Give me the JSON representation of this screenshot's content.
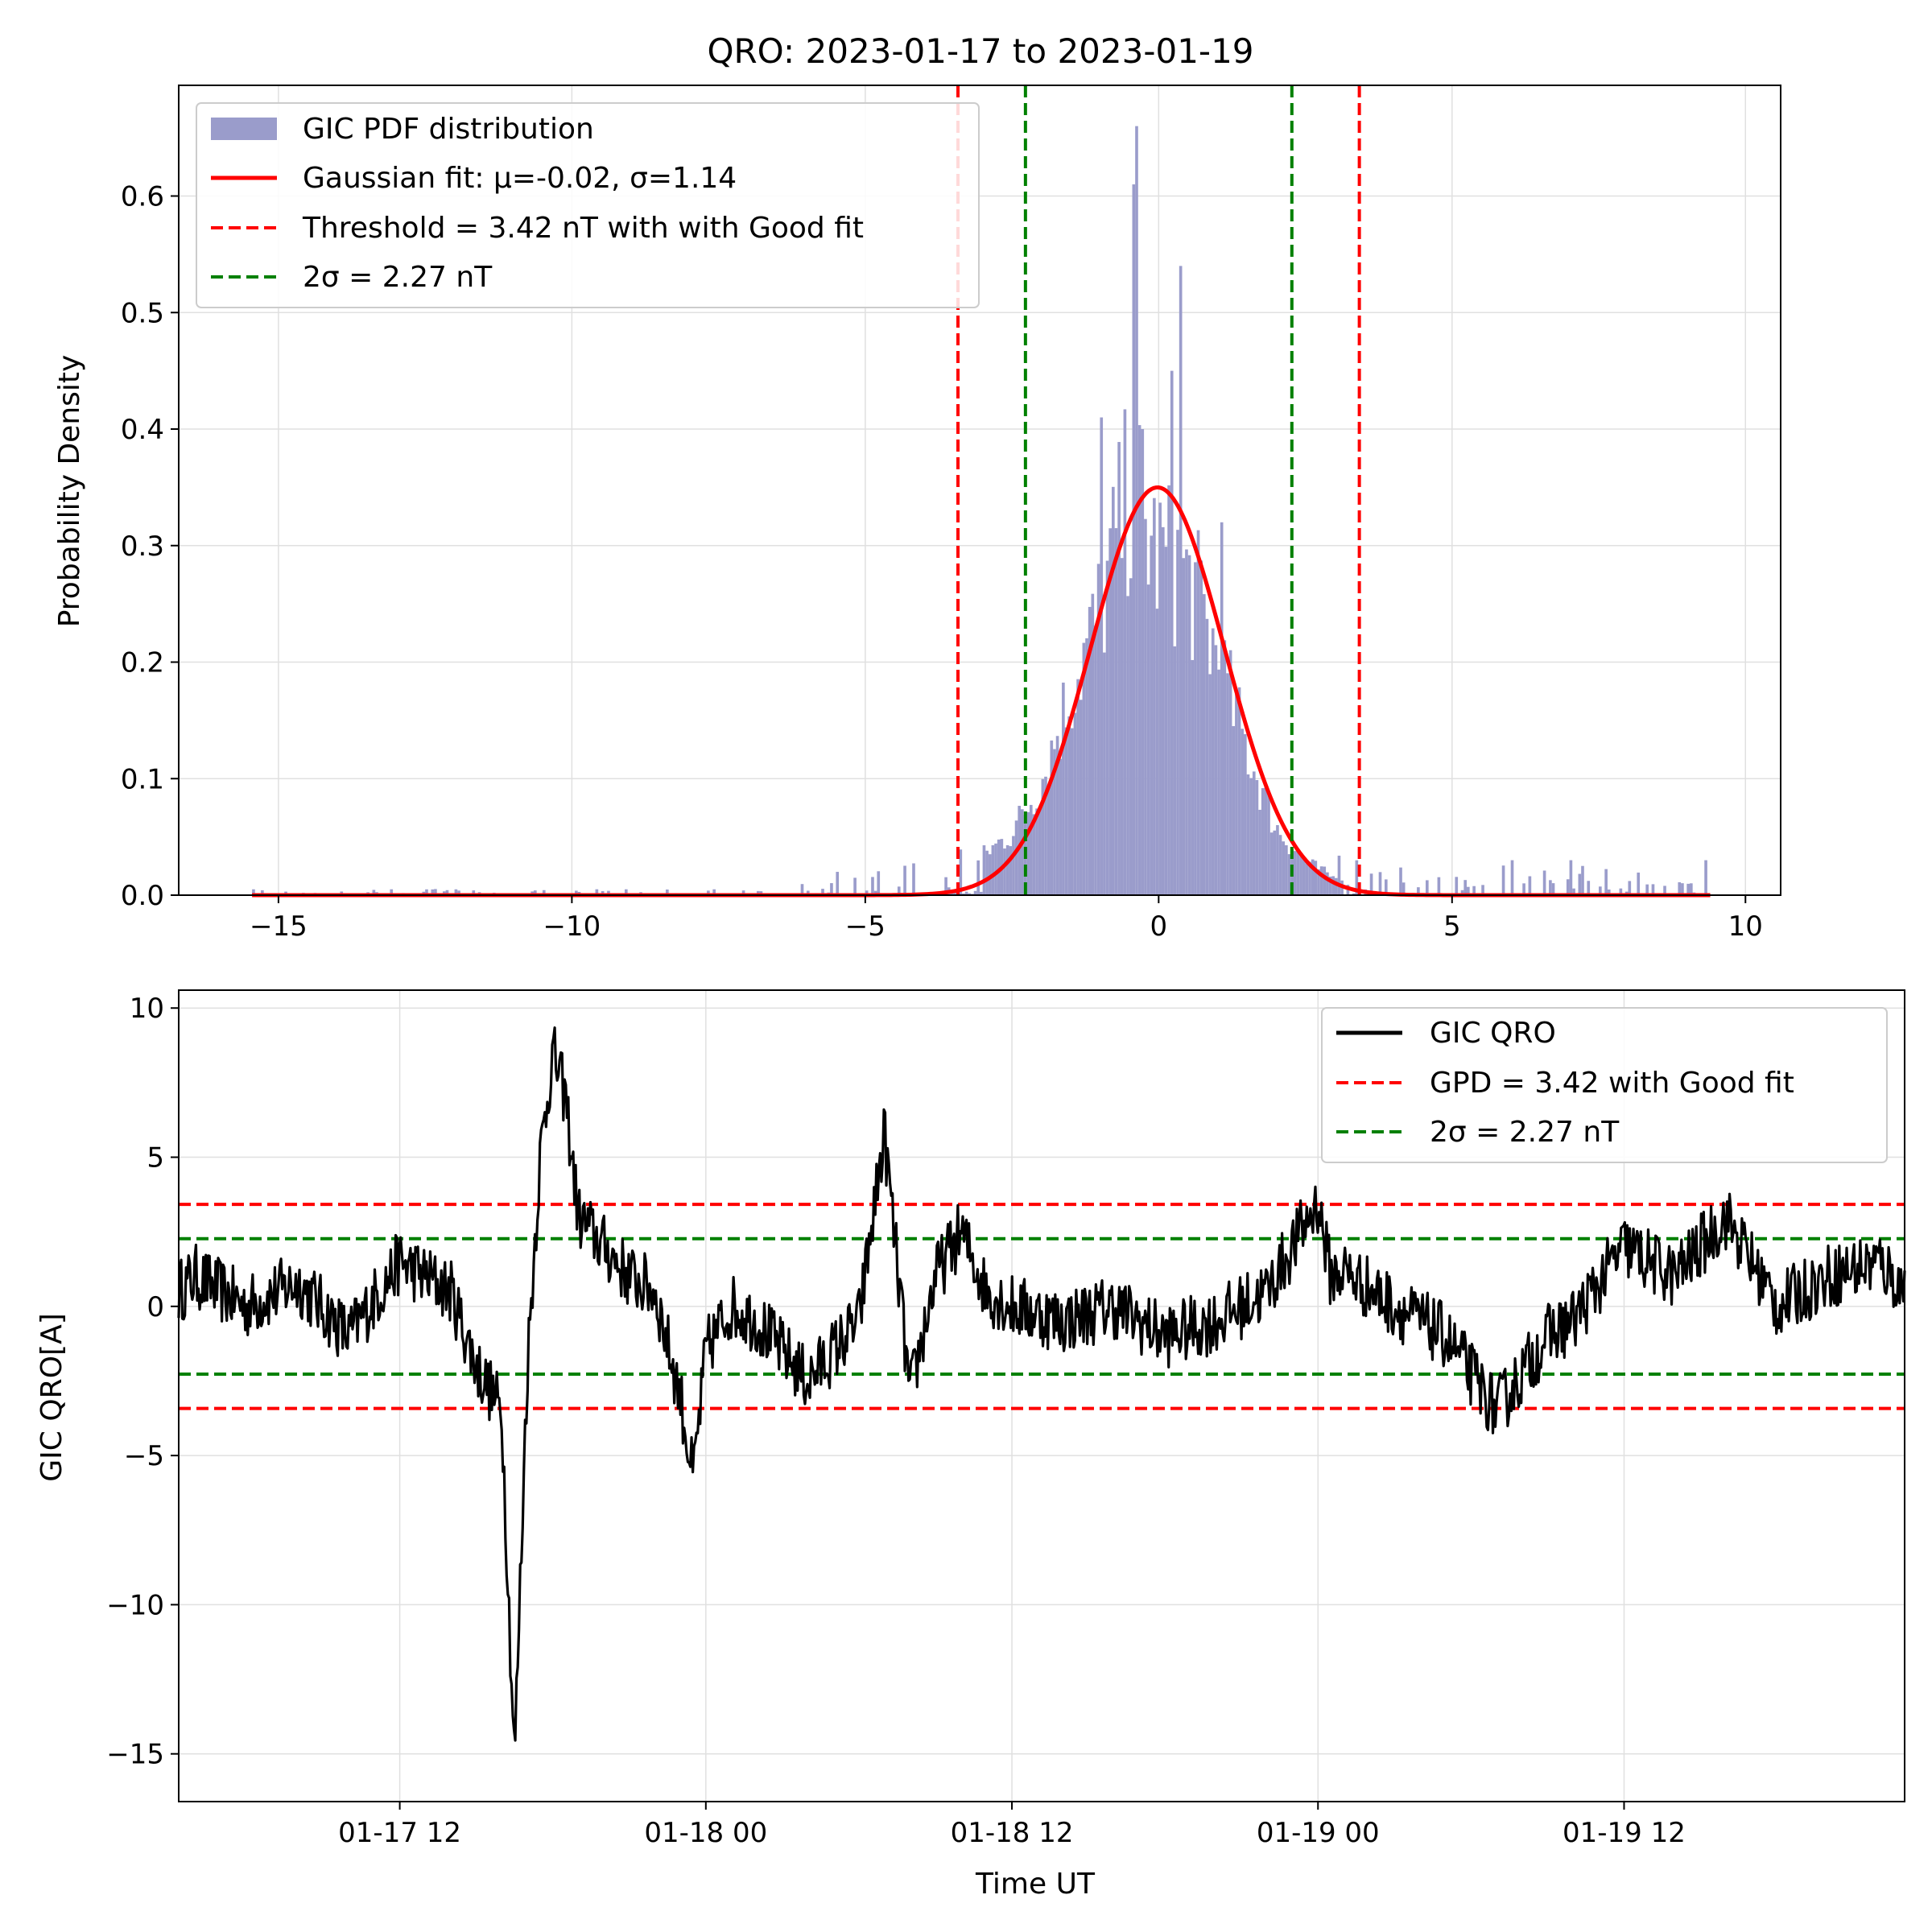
{
  "figure_title": "QRO:  2023-01-17 to 2023-01-19",
  "colors": {
    "histogram": "#9a9ccb",
    "gaussian": "#ff0000",
    "threshold": "#ff0000",
    "two_sigma": "#008000",
    "gic_line": "#000000",
    "grid": "#e0e0e0"
  },
  "chart_data": [
    {
      "type": "bar",
      "subtype": "histogram",
      "title": "QRO:  2023-01-17 to 2023-01-19",
      "xlabel": "",
      "ylabel": "Probability Density",
      "xlim": [
        -16.7,
        10.6
      ],
      "ylim": [
        0,
        0.695
      ],
      "xticks": [
        -15,
        -10,
        -5,
        0,
        5,
        10
      ],
      "xtick_labels": [
        "−15",
        "−10",
        "−5",
        "0",
        "5",
        "10"
      ],
      "yticks": [
        0.0,
        0.1,
        0.2,
        0.3,
        0.4,
        0.5,
        0.6
      ],
      "ytick_labels": [
        "0.0",
        "0.1",
        "0.2",
        "0.3",
        "0.4",
        "0.5",
        "0.6"
      ],
      "grid": true,
      "legend_position": "top-left",
      "legend": [
        "GIC PDF distribution",
        "Gaussian fit: μ=-0.02, σ=1.14",
        "Threshold = 3.42 nT with with  Good fit",
        "2σ = 2.27 nT"
      ],
      "histogram": {
        "name": "GIC PDF distribution",
        "x_range": [
          -15.45,
          9.4
        ],
        "profile_x": [
          -15.45,
          -6.5,
          -6.0,
          -5.0,
          -4.0,
          -3.5,
          -3.0,
          -2.5,
          -2.0,
          -1.5,
          -1.0,
          -0.6,
          -0.4,
          -0.2,
          0.0,
          0.3,
          0.6,
          1.0,
          1.5,
          2.0,
          2.5,
          3.0,
          4.0,
          5.0,
          6.0,
          7.0,
          8.0,
          9.4
        ],
        "profile_y": [
          0.002,
          0.002,
          0.004,
          0.008,
          0.012,
          0.02,
          0.035,
          0.055,
          0.1,
          0.18,
          0.25,
          0.34,
          0.36,
          0.32,
          0.3,
          0.29,
          0.27,
          0.21,
          0.13,
          0.06,
          0.03,
          0.015,
          0.01,
          0.008,
          0.01,
          0.01,
          0.008,
          0.006
        ],
        "peaks": [
          {
            "x": -0.98,
            "y": 0.41
          },
          {
            "x": -0.45,
            "y": 0.61
          },
          {
            "x": -0.38,
            "y": 0.66
          },
          {
            "x": -0.32,
            "y": 0.4
          },
          {
            "x": 0.2,
            "y": 0.45
          },
          {
            "x": 0.35,
            "y": 0.54
          },
          {
            "x": 0.18,
            "y": 0.37
          },
          {
            "x": 1.05,
            "y": 0.32
          },
          {
            "x": 6.0,
            "y": 0.03
          },
          {
            "x": 7.0,
            "y": 0.03
          },
          {
            "x": 9.3,
            "y": 0.03
          },
          {
            "x": -5.5,
            "y": 0.02
          }
        ]
      },
      "gaussian_fit": {
        "name": "Gaussian fit: μ=-0.02, σ=1.14",
        "mu": -0.02,
        "sigma": 1.14,
        "x_range": [
          -15.45,
          9.4
        ]
      },
      "vlines": [
        {
          "name": "Threshold = 3.42 nT with with  Good fit",
          "values": [
            -3.42,
            3.42
          ],
          "style": "dashed",
          "color": "#ff0000"
        },
        {
          "name": "2σ = 2.27 nT",
          "values": [
            -2.27,
            2.27
          ],
          "style": "dashed",
          "color": "#008000"
        }
      ]
    },
    {
      "type": "line",
      "title": "",
      "xlabel": "Time UT",
      "ylabel": "GIC QRO[A]",
      "xlim": [
        "2023-01-17 03:20",
        "2023-01-19 23:00"
      ],
      "ylim": [
        -16.6,
        10.6
      ],
      "xticks": [
        "2023-01-17 12:00",
        "2023-01-18 00:00",
        "2023-01-18 12:00",
        "2023-01-19 00:00",
        "2023-01-19 12:00"
      ],
      "xtick_labels": [
        "01-17 12",
        "01-18 00",
        "01-18 12",
        "01-19 00",
        "01-19 12"
      ],
      "yticks": [
        10,
        5,
        0,
        -5,
        -10,
        -15
      ],
      "ytick_labels": [
        "10",
        "5",
        "0",
        "−5",
        "−10",
        "−15"
      ],
      "grid": true,
      "legend_position": "top-right",
      "legend": [
        "GIC QRO",
        "GPD = 3.42 with  Good fit",
        "2σ = 2.27 nT"
      ],
      "series": [
        {
          "name": "GIC QRO",
          "x": [
            "2023-01-17 03:20",
            "2023-01-17 04:00",
            "2023-01-17 06:00",
            "2023-01-17 08:00",
            "2023-01-17 10:00",
            "2023-01-17 12:00",
            "2023-01-17 14:00",
            "2023-01-17 15:00",
            "2023-01-17 16:00",
            "2023-01-17 16:30",
            "2023-01-17 17:00",
            "2023-01-17 17:30",
            "2023-01-17 18:00",
            "2023-01-17 18:30",
            "2023-01-17 19:00",
            "2023-01-17 20:00",
            "2023-01-17 21:00",
            "2023-01-17 22:00",
            "2023-01-17 23:00",
            "2023-01-17 23:30",
            "2023-01-18 00:00",
            "2023-01-18 01:00",
            "2023-01-18 02:00",
            "2023-01-18 04:00",
            "2023-01-18 06:00",
            "2023-01-18 07:00",
            "2023-01-18 08:00",
            "2023-01-18 09:00",
            "2023-01-18 10:00",
            "2023-01-18 11:00",
            "2023-01-18 12:00",
            "2023-01-18 14:00",
            "2023-01-18 16:00",
            "2023-01-18 18:00",
            "2023-01-18 20:00",
            "2023-01-18 22:00",
            "2023-01-19 00:00",
            "2023-01-19 00:30",
            "2023-01-19 01:00",
            "2023-01-19 03:00",
            "2023-01-19 05:00",
            "2023-01-19 07:00",
            "2023-01-19 09:00",
            "2023-01-19 10:00",
            "2023-01-19 12:00",
            "2023-01-19 14:00",
            "2023-01-19 16:00",
            "2023-01-19 18:00",
            "2023-01-19 20:00",
            "2023-01-19 22:00",
            "2023-01-19 23:00"
          ],
          "y": [
            0.5,
            1.0,
            0.0,
            0.8,
            -1.0,
            1.5,
            0.5,
            -2.0,
            -3.5,
            -15.2,
            -2.0,
            5.0,
            8.5,
            7.0,
            3.0,
            2.0,
            1.0,
            0.5,
            -3.0,
            -5.8,
            -1.5,
            0.0,
            -0.5,
            -2.5,
            -0.5,
            5.8,
            -3.0,
            1.0,
            2.5,
            0.5,
            0.0,
            -0.5,
            0.0,
            -1.0,
            -0.5,
            0.5,
            3.5,
            1.0,
            1.2,
            0.0,
            -1.0,
            -3.5,
            -1.0,
            -0.5,
            2.0,
            1.0,
            3.0,
            0.0,
            1.0,
            1.5,
            0.5
          ]
        }
      ],
      "hlines": [
        {
          "name": "GPD = 3.42 with  Good fit",
          "values": [
            3.42,
            -3.42
          ],
          "style": "dashed",
          "color": "#ff0000"
        },
        {
          "name": "2σ = 2.27 nT",
          "values": [
            2.27,
            -2.27
          ],
          "style": "dashed",
          "color": "#008000"
        }
      ]
    }
  ]
}
